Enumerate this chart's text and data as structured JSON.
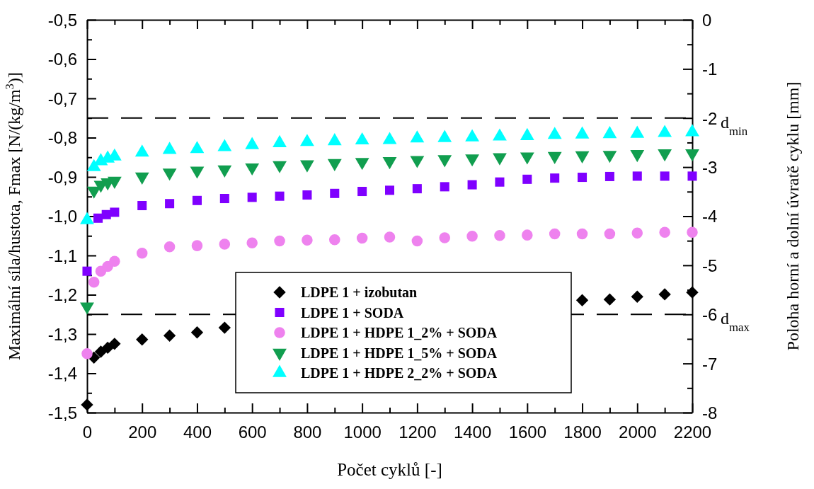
{
  "chart_data": {
    "type": "scatter",
    "xlabel": "Počet cyklů [-]",
    "ylabel": "Maximální síla/hustota, Fmax  [N/(kg/m$^{3}$)]",
    "y2label": "Poloha horní a dolní úvratě cyklu [mm]",
    "x": [
      0,
      25,
      50,
      75,
      100,
      200,
      300,
      400,
      500,
      600,
      700,
      800,
      900,
      1000,
      1100,
      1200,
      1300,
      1400,
      1500,
      1600,
      1700,
      1800,
      1900,
      2000,
      2100,
      2200
    ],
    "series": [
      {
        "name": "LDPE 1 + izobutan",
        "color": "#000000",
        "marker": "diamond",
        "values": [
          -1.48,
          -1.36,
          -1.345,
          -1.335,
          -1.325,
          -1.314,
          -1.304,
          -1.296,
          -1.284,
          null,
          null,
          null,
          null,
          null,
          null,
          null,
          null,
          null,
          null,
          null,
          null,
          -1.214,
          -1.212,
          -1.205,
          -1.199,
          -1.194
        ]
      },
      {
        "name": "LDPE 1 + SODA",
        "color": "#7f00ff",
        "marker": "square",
        "x": [
          0,
          40,
          70,
          100,
          200,
          300,
          400,
          500,
          600,
          700,
          800,
          900,
          1000,
          1100,
          1200,
          1300,
          1400,
          1500,
          1600,
          1700,
          1800,
          1900,
          2000,
          2100,
          2200
        ],
        "values": [
          -1.14,
          -1.005,
          -0.996,
          -0.99,
          -0.973,
          -0.968,
          -0.96,
          -0.955,
          -0.952,
          -0.949,
          -0.946,
          -0.942,
          -0.937,
          -0.934,
          -0.93,
          -0.925,
          -0.92,
          -0.913,
          -0.906,
          -0.903,
          -0.901,
          -0.899,
          -0.898,
          -0.898,
          -0.898
        ]
      },
      {
        "name": "LDPE 1 + HDPE 1_2% + SODA",
        "color": "#ee82ee",
        "marker": "circle",
        "values": [
          -1.35,
          -1.168,
          -1.14,
          -1.128,
          -1.115,
          -1.094,
          -1.078,
          -1.075,
          -1.071,
          -1.068,
          -1.063,
          -1.061,
          -1.06,
          -1.056,
          -1.053,
          -1.063,
          -1.055,
          -1.051,
          -1.049,
          -1.048,
          -1.045,
          -1.045,
          -1.045,
          -1.043,
          -1.041,
          -1.041
        ]
      },
      {
        "name": "LDPE 1 + HDPE 1_5% + SODA",
        "color": "#119e4f",
        "marker": "triangle-down",
        "values": [
          -1.23,
          -0.935,
          -0.92,
          -0.914,
          -0.91,
          -0.899,
          -0.889,
          -0.884,
          -0.881,
          -0.876,
          -0.87,
          -0.868,
          -0.865,
          -0.862,
          -0.86,
          -0.857,
          -0.855,
          -0.853,
          -0.85,
          -0.848,
          -0.847,
          -0.845,
          -0.844,
          -0.842,
          -0.84,
          -0.84
        ]
      },
      {
        "name": "LDPE 1 + HDPE 2_2% + SODA",
        "color": "#00ffff",
        "marker": "triangle",
        "values": [
          -1.01,
          -0.875,
          -0.86,
          -0.853,
          -0.848,
          -0.838,
          -0.831,
          -0.829,
          -0.824,
          -0.819,
          -0.814,
          -0.811,
          -0.809,
          -0.807,
          -0.806,
          -0.802,
          -0.801,
          -0.799,
          -0.797,
          -0.796,
          -0.793,
          -0.792,
          -0.791,
          -0.79,
          -0.788,
          -0.786
        ]
      }
    ],
    "xlim": [
      0,
      2200
    ],
    "xticks": [
      0,
      {
        "value": 100,
        "label": null
      },
      200,
      {
        "value": 300,
        "label": null
      },
      400,
      {
        "value": 500,
        "label": null
      },
      600,
      {
        "value": 700,
        "label": null
      },
      800,
      {
        "value": 900,
        "label": null
      },
      1000,
      {
        "value": 1100,
        "label": null
      },
      1200,
      {
        "value": 1300,
        "label": null
      },
      1400,
      {
        "value": 1500,
        "label": null
      },
      1600,
      {
        "value": 1700,
        "label": null
      },
      1800,
      {
        "value": 1900,
        "label": null
      },
      2000,
      {
        "value": 2100,
        "label": null
      },
      2200
    ],
    "ylim": [
      -1.5,
      -0.5
    ],
    "yticks": [
      {
        "value": -1.5,
        "label": "-1,5"
      },
      {
        "value": -1.45,
        "label": null
      },
      {
        "value": -1.4,
        "label": "-1,4"
      },
      {
        "value": -1.35,
        "label": null
      },
      {
        "value": -1.3,
        "label": "-1,3"
      },
      {
        "value": -1.25,
        "label": null
      },
      {
        "value": -1.2,
        "label": "-1,2"
      },
      {
        "value": -1.15,
        "label": null
      },
      {
        "value": -1.1,
        "label": "-1,1"
      },
      {
        "value": -1.05,
        "label": null
      },
      {
        "value": -1.0,
        "label": "-1,0"
      },
      {
        "value": -0.95,
        "label": null
      },
      {
        "value": -0.9,
        "label": "-0,9"
      },
      {
        "value": -0.85,
        "label": null
      },
      {
        "value": -0.8,
        "label": "-0,8"
      },
      {
        "value": -0.75,
        "label": null
      },
      {
        "value": -0.7,
        "label": "-0,7"
      },
      {
        "value": -0.65,
        "label": null
      },
      {
        "value": -0.6,
        "label": "-0,6"
      },
      {
        "value": -0.55,
        "label": null
      },
      {
        "value": -0.5,
        "label": "-0,5"
      }
    ],
    "y2lim": [
      -8,
      0
    ],
    "y2ticks": [
      -8,
      {
        "value": -7.5,
        "label": null
      },
      -7,
      {
        "value": -6.5,
        "label": null
      },
      -6,
      {
        "value": -5.5,
        "label": null
      },
      -5,
      {
        "value": -4.5,
        "label": null
      },
      -4,
      {
        "value": -3.5,
        "label": null
      },
      -3,
      {
        "value": -2.5,
        "label": null
      },
      -2,
      {
        "value": -1.5,
        "label": null
      },
      -1,
      {
        "value": -0.5,
        "label": null
      },
      0
    ],
    "ref_lines": [
      {
        "axis": "y2",
        "value": -2,
        "label": "d$_{min}$",
        "color": "#000000",
        "line_style": "dashed"
      },
      {
        "axis": "y2",
        "value": -6,
        "label": "d$_{max}$",
        "color": "#000000",
        "line_style": "dashed"
      }
    ],
    "legend": "bottom",
    "grid": false
  }
}
